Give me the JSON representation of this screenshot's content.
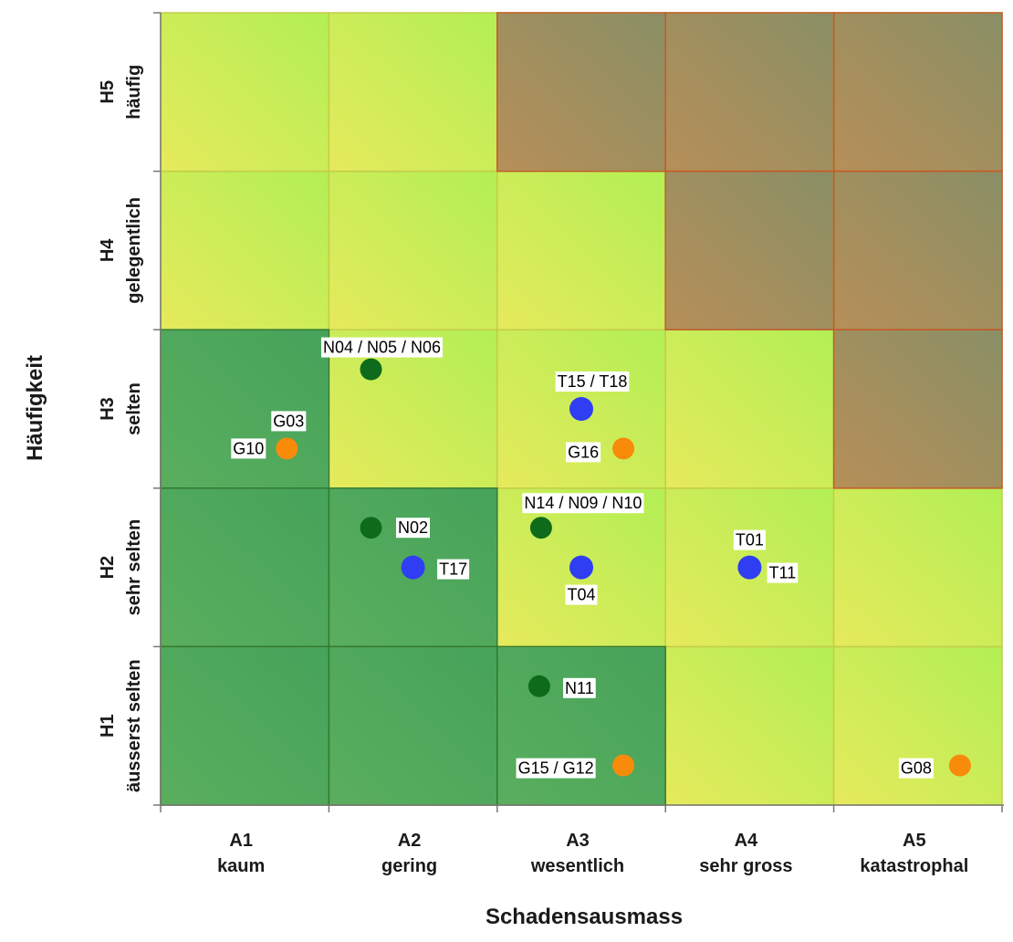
{
  "chart_data": {
    "type": "scatter",
    "title": "",
    "xlabel": "Schadensausmass",
    "ylabel": "Häufigkeit",
    "x_categories": [
      {
        "code": "A1",
        "label": "kaum"
      },
      {
        "code": "A2",
        "label": "gering"
      },
      {
        "code": "A3",
        "label": "wesentlich"
      },
      {
        "code": "A4",
        "label": "sehr gross"
      },
      {
        "code": "A5",
        "label": "katastrophal"
      }
    ],
    "y_categories": [
      {
        "code": "H1",
        "label": "äusserst selten"
      },
      {
        "code": "H2",
        "label": "sehr selten"
      },
      {
        "code": "H3",
        "label": "selten"
      },
      {
        "code": "H4",
        "label": "gelegentlich"
      },
      {
        "code": "H5",
        "label": "häufig"
      }
    ],
    "zones": [
      [
        "green",
        "green",
        "green",
        "yellow",
        "yellow"
      ],
      [
        "green",
        "green",
        "yellow",
        "yellow",
        "yellow"
      ],
      [
        "green",
        "yellow",
        "yellow",
        "yellow",
        "red"
      ],
      [
        "yellow",
        "yellow",
        "yellow",
        "red",
        "red"
      ],
      [
        "yellow",
        "yellow",
        "red",
        "red",
        "red"
      ]
    ],
    "zone_colors": {
      "green": "#4ea85a",
      "yellow": "#d7ea5e",
      "red": "#a8845c"
    },
    "series_colors": {
      "N": "#0f6b1c",
      "T": "#2f3ef2",
      "G": "#f98b0a"
    },
    "points": [
      {
        "label": "N04 / N05 / N06",
        "group": "N",
        "x": 2.25,
        "y": 3.75
      },
      {
        "label": "G03",
        "group": "G",
        "x": 1.75,
        "y": 3.25
      },
      {
        "label": "G10",
        "group": "G",
        "x": 1.75,
        "y": 3.25
      },
      {
        "label": "T15 / T18",
        "group": "T",
        "x": 3.5,
        "y": 3.5
      },
      {
        "label": "G16",
        "group": "G",
        "x": 3.75,
        "y": 3.25
      },
      {
        "label": "N02",
        "group": "N",
        "x": 2.25,
        "y": 2.75
      },
      {
        "label": "T17",
        "group": "T",
        "x": 2.5,
        "y": 2.5
      },
      {
        "label": "N14 / N09 / N10",
        "group": "N",
        "x": 3.25,
        "y": 2.75
      },
      {
        "label": "T04",
        "group": "T",
        "x": 3.5,
        "y": 2.5
      },
      {
        "label": "T01",
        "group": "T",
        "x": 4.5,
        "y": 2.5
      },
      {
        "label": "T11",
        "group": "T",
        "x": 4.5,
        "y": 2.5
      },
      {
        "label": "N11",
        "group": "N",
        "x": 3.25,
        "y": 1.75
      },
      {
        "label": "G15 / G12",
        "group": "G",
        "x": 3.75,
        "y": 1.25
      },
      {
        "label": "G08",
        "group": "G",
        "x": 5.75,
        "y": 1.25
      }
    ]
  }
}
